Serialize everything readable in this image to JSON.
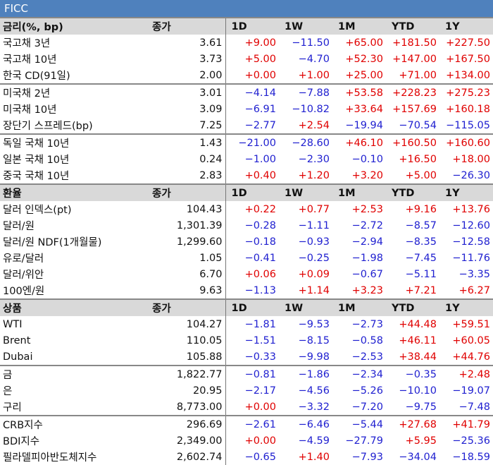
{
  "title": "FICC",
  "sections": [
    {
      "header": {
        "name": "금리(%, bp)",
        "close": "종가",
        "periods": [
          "1D",
          "1W",
          "1M",
          "YTD",
          "1Y"
        ]
      },
      "groups": [
        [
          {
            "name": "국고채 3년",
            "close": "3.61",
            "values": [
              "+9.00",
              "-11.50",
              "+65.00",
              "+181.50",
              "+227.50"
            ]
          },
          {
            "name": "국고채 10년",
            "close": "3.73",
            "values": [
              "+5.00",
              "-4.70",
              "+52.30",
              "+147.00",
              "+167.50"
            ]
          },
          {
            "name": "한국 CD(91일)",
            "close": "2.00",
            "values": [
              "+0.00",
              "+1.00",
              "+25.00",
              "+71.00",
              "+134.00"
            ]
          }
        ],
        [
          {
            "name": "미국채 2년",
            "close": "3.01",
            "values": [
              "-4.14",
              "-7.88",
              "+53.58",
              "+228.23",
              "+275.23"
            ]
          },
          {
            "name": "미국채 10년",
            "close": "3.09",
            "values": [
              "-6.91",
              "-10.82",
              "+33.64",
              "+157.69",
              "+160.18"
            ]
          },
          {
            "name": "장단기 스프레드(bp)",
            "close": "7.25",
            "values": [
              "-2.77",
              "+2.54",
              "-19.94",
              "-70.54",
              "-115.05"
            ]
          }
        ],
        [
          {
            "name": "독일 국채 10년",
            "close": "1.43",
            "values": [
              "-21.00",
              "-28.60",
              "+46.10",
              "+160.50",
              "+160.60"
            ]
          },
          {
            "name": "일본 국채 10년",
            "close": "0.24",
            "values": [
              "-1.00",
              "-2.30",
              "-0.10",
              "+16.50",
              "+18.00"
            ]
          },
          {
            "name": "중국 국채 10년",
            "close": "2.83",
            "values": [
              "+0.40",
              "+1.20",
              "+3.20",
              "+5.00",
              "-26.30"
            ]
          }
        ]
      ]
    },
    {
      "header": {
        "name": "환율",
        "close": "종가",
        "periods": [
          "1D",
          "1W",
          "1M",
          "YTD",
          "1Y"
        ]
      },
      "groups": [
        [
          {
            "name": "달러 인덱스(pt)",
            "close": "104.43",
            "values": [
              "+0.22",
              "+0.77",
              "+2.53",
              "+9.16",
              "+13.76"
            ]
          },
          {
            "name": "달러/원",
            "close": "1,301.39",
            "values": [
              "-0.28",
              "-1.11",
              "-2.72",
              "-8.57",
              "-12.60"
            ]
          },
          {
            "name": "달러/원 NDF(1개월물)",
            "close": "1,299.60",
            "values": [
              "-0.18",
              "-0.93",
              "-2.94",
              "-8.35",
              "-12.58"
            ]
          },
          {
            "name": "유로/달러",
            "close": "1.05",
            "values": [
              "-0.41",
              "-0.25",
              "-1.98",
              "-7.45",
              "-11.76"
            ]
          },
          {
            "name": "달러/위안",
            "close": "6.70",
            "values": [
              "+0.06",
              "+0.09",
              "-0.67",
              "-5.11",
              "-3.35"
            ]
          },
          {
            "name": "100엔/원",
            "close": "9.63",
            "values": [
              "-1.13",
              "+1.14",
              "+3.23",
              "+7.21",
              "+6.27"
            ]
          }
        ]
      ]
    },
    {
      "header": {
        "name": "상품",
        "close": "종가",
        "periods": [
          "1D",
          "1W",
          "1M",
          "YTD",
          "1Y"
        ]
      },
      "groups": [
        [
          {
            "name": "WTI",
            "close": "104.27",
            "values": [
              "-1.81",
              "-9.53",
              "-2.73",
              "+44.48",
              "+59.51"
            ]
          },
          {
            "name": "Brent",
            "close": "110.05",
            "values": [
              "-1.51",
              "-8.15",
              "-0.58",
              "+46.11",
              "+60.05"
            ]
          },
          {
            "name": "Dubai",
            "close": "105.88",
            "values": [
              "-0.33",
              "-9.98",
              "-2.53",
              "+38.44",
              "+44.76"
            ]
          }
        ],
        [
          {
            "name": "금",
            "close": "1,822.77",
            "values": [
              "-0.81",
              "-1.86",
              "-2.34",
              "-0.35",
              "+2.48"
            ]
          },
          {
            "name": "은",
            "close": "20.95",
            "values": [
              "-2.17",
              "-4.56",
              "-5.26",
              "-10.10",
              "-19.07"
            ]
          },
          {
            "name": "구리",
            "close": "8,773.00",
            "values": [
              "+0.00",
              "-3.32",
              "-7.20",
              "-9.75",
              "-7.48"
            ]
          }
        ],
        [
          {
            "name": "CRB지수",
            "close": "296.69",
            "values": [
              "-2.61",
              "-6.46",
              "-5.44",
              "+27.68",
              "+41.79"
            ]
          },
          {
            "name": "BDI지수",
            "close": "2,349.00",
            "values": [
              "+0.00",
              "-4.59",
              "-27.79",
              "+5.95",
              "-25.36"
            ]
          },
          {
            "name": "필라델피아반도체지수",
            "close": "2,602.74",
            "values": [
              "-0.65",
              "+1.40",
              "-7.93",
              "-34.04",
              "-18.59"
            ]
          }
        ]
      ]
    }
  ]
}
